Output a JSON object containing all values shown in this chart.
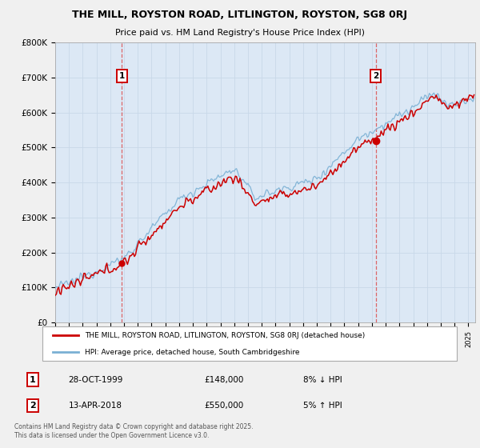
{
  "title_line1": "THE MILL, ROYSTON ROAD, LITLINGTON, ROYSTON, SG8 0RJ",
  "title_line2": "Price paid vs. HM Land Registry's House Price Index (HPI)",
  "background_color": "#f0f0f0",
  "plot_bg_color": "#dce8f5",
  "red_line_label": "THE MILL, ROYSTON ROAD, LITLINGTON, ROYSTON, SG8 0RJ (detached house)",
  "blue_line_label": "HPI: Average price, detached house, South Cambridgeshire",
  "marker1_date": "28-OCT-1999",
  "marker1_price": "£148,000",
  "marker1_pct": "8% ↓ HPI",
  "marker2_date": "13-APR-2018",
  "marker2_price": "£550,000",
  "marker2_pct": "5% ↑ HPI",
  "footer": "Contains HM Land Registry data © Crown copyright and database right 2025.\nThis data is licensed under the Open Government Licence v3.0.",
  "ylim": [
    0,
    800000
  ],
  "xlim_start": 1995.0,
  "xlim_end": 2025.5,
  "marker1_x": 1999.83,
  "marker1_y": 148000,
  "marker2_x": 2018.28,
  "marker2_y": 550000,
  "red_color": "#cc0000",
  "blue_color": "#7ab0d4",
  "vline_color": "#dd4444",
  "grid_color": "#c8d8e8",
  "legend_border_color": "#aaaaaa",
  "marker_box_color": "#cc0000"
}
